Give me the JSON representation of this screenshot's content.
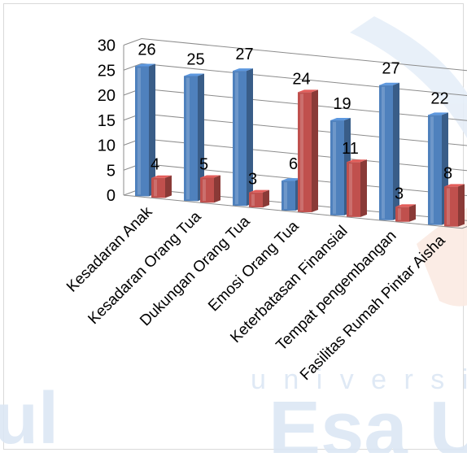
{
  "chart_data": {
    "type": "bar",
    "categories": [
      "Kesadaran Anak",
      "Kesadaran Orang Tua",
      "Dukungan Orang Tua",
      "Emosi Orang Tua",
      "Keterbatasan Finansial",
      "Tempat pengembangan",
      "Fasilitas Rumah Pintar Aisha"
    ],
    "series": [
      {
        "values": [
          26,
          25,
          27,
          6,
          19,
          27,
          22
        ],
        "color": "#4F81BD"
      },
      {
        "values": [
          4,
          5,
          3,
          24,
          11,
          3,
          8
        ],
        "color": "#C0504D"
      }
    ],
    "ylim": [
      0,
      30
    ],
    "y_ticks": [
      "0",
      "5",
      "10",
      "15",
      "20",
      "25",
      "30"
    ],
    "grid": true,
    "legend": "none",
    "style": "3d-clustered-column"
  },
  "watermark": {
    "text": "Universitas Esa Unggul",
    "visible_text": [
      "u n i v e r s i t a",
      "Esa U",
      "ul"
    ],
    "colors": [
      "#dce7f4",
      "#fbe7de"
    ]
  }
}
